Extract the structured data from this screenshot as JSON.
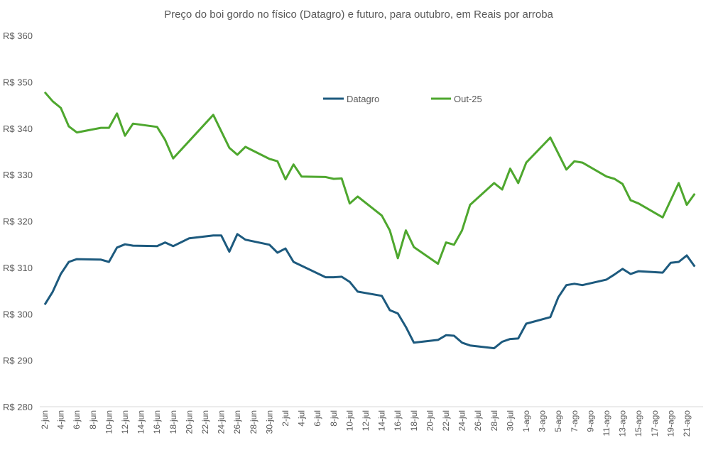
{
  "chart_data": {
    "type": "line",
    "title": "Preço do boi gordo no físico (Datagro) e futuro, para outubro, em Reais por arroba",
    "xlabel": "",
    "ylabel": "",
    "ylim": [
      280,
      360
    ],
    "y_ticks": [
      "R$ 280",
      "R$ 290",
      "R$ 300",
      "R$ 310",
      "R$ 320",
      "R$ 330",
      "R$ 340",
      "R$ 350",
      "R$ 360"
    ],
    "y_tick_values": [
      280,
      290,
      300,
      310,
      320,
      330,
      340,
      350,
      360
    ],
    "x_ticks": [
      "2-jun",
      "4-jun",
      "6-jun",
      "8-jun",
      "10-jun",
      "12-jun",
      "14-jun",
      "16-jun",
      "18-jun",
      "20-jun",
      "22-jun",
      "24-jun",
      "26-jun",
      "28-jun",
      "30-jun",
      "2-jul",
      "4-jul",
      "6-jul",
      "8-jul",
      "10-jul",
      "12-jul",
      "14-jul",
      "16-jul",
      "18-jul",
      "20-jul",
      "22-jul",
      "24-jul",
      "26-jul",
      "28-jul",
      "30-jul",
      "1-ago",
      "3-ago",
      "5-ago",
      "7-ago",
      "9-ago",
      "11-ago",
      "13-ago",
      "15-ago",
      "17-ago",
      "19-ago",
      "21-ago"
    ],
    "grid": false,
    "legend_position": "top-center",
    "series": [
      {
        "name": "Datagro",
        "color": "#1d5a7e",
        "points": [
          [
            "2-jun",
            302.0
          ],
          [
            "3-jun",
            304.8
          ],
          [
            "4-jun",
            308.6
          ],
          [
            "5-jun",
            311.2
          ],
          [
            "6-jun",
            311.8
          ],
          [
            "9-jun",
            311.7
          ],
          [
            "10-jun",
            311.2
          ],
          [
            "11-jun",
            314.3
          ],
          [
            "12-jun",
            315.0
          ],
          [
            "13-jun",
            314.7
          ],
          [
            "16-jun",
            314.6
          ],
          [
            "17-jun",
            315.4
          ],
          [
            "18-jun",
            314.6
          ],
          [
            "20-jun",
            316.3
          ],
          [
            "23-jun",
            316.9
          ],
          [
            "24-jun",
            316.9
          ],
          [
            "25-jun",
            313.4
          ],
          [
            "26-jun",
            317.2
          ],
          [
            "27-jun",
            316.0
          ],
          [
            "30-jun",
            314.9
          ],
          [
            "1-jul",
            313.2
          ],
          [
            "2-jul",
            314.1
          ],
          [
            "3-jul",
            311.2
          ],
          [
            "7-jul",
            307.9
          ],
          [
            "8-jul",
            307.9
          ],
          [
            "9-jul",
            308.0
          ],
          [
            "10-jul",
            306.9
          ],
          [
            "11-jul",
            304.8
          ],
          [
            "14-jul",
            303.9
          ],
          [
            "15-jul",
            300.8
          ],
          [
            "16-jul",
            300.1
          ],
          [
            "17-jul",
            297.2
          ],
          [
            "18-jul",
            293.8
          ],
          [
            "21-jul",
            294.4
          ],
          [
            "22-jul",
            295.4
          ],
          [
            "23-jul",
            295.3
          ],
          [
            "24-jul",
            293.8
          ],
          [
            "25-jul",
            293.2
          ],
          [
            "28-jul",
            292.6
          ],
          [
            "29-jul",
            294.0
          ],
          [
            "30-jul",
            294.6
          ],
          [
            "31-jul",
            294.7
          ],
          [
            "1-ago",
            297.9
          ],
          [
            "4-ago",
            299.3
          ],
          [
            "5-ago",
            303.6
          ],
          [
            "6-ago",
            306.2
          ],
          [
            "7-ago",
            306.5
          ],
          [
            "8-ago",
            306.2
          ],
          [
            "11-ago",
            307.4
          ],
          [
            "12-ago",
            308.5
          ],
          [
            "13-ago",
            309.7
          ],
          [
            "14-ago",
            308.6
          ],
          [
            "15-ago",
            309.2
          ],
          [
            "18-ago",
            308.9
          ],
          [
            "19-ago",
            311.0
          ],
          [
            "20-ago",
            311.2
          ],
          [
            "21-ago",
            312.6
          ],
          [
            "22-ago",
            310.2
          ]
        ]
      },
      {
        "name": "Out-25",
        "color": "#4ea72e",
        "points": [
          [
            "2-jun",
            347.8
          ],
          [
            "3-jun",
            345.8
          ],
          [
            "4-jun",
            344.4
          ],
          [
            "5-jun",
            340.4
          ],
          [
            "6-jun",
            339.1
          ],
          [
            "9-jun",
            340.1
          ],
          [
            "10-jun",
            340.1
          ],
          [
            "11-jun",
            343.2
          ],
          [
            "12-jun",
            338.4
          ],
          [
            "13-jun",
            341.0
          ],
          [
            "16-jun",
            340.3
          ],
          [
            "17-jun",
            337.5
          ],
          [
            "18-jun",
            333.5
          ],
          [
            "23-jun",
            342.9
          ],
          [
            "25-jun",
            335.8
          ],
          [
            "26-jun",
            334.3
          ],
          [
            "27-jun",
            336.0
          ],
          [
            "30-jun",
            333.4
          ],
          [
            "1-jul",
            332.9
          ],
          [
            "2-jul",
            329.0
          ],
          [
            "3-jul",
            332.2
          ],
          [
            "4-jul",
            329.6
          ],
          [
            "7-jul",
            329.5
          ],
          [
            "8-jul",
            329.1
          ],
          [
            "9-jul",
            329.2
          ],
          [
            "10-jul",
            323.8
          ],
          [
            "11-jul",
            325.3
          ],
          [
            "14-jul",
            321.2
          ],
          [
            "15-jul",
            318.0
          ],
          [
            "16-jul",
            312.0
          ],
          [
            "17-jul",
            318.0
          ],
          [
            "18-jul",
            314.4
          ],
          [
            "21-jul",
            310.8
          ],
          [
            "22-jul",
            315.4
          ],
          [
            "23-jul",
            314.9
          ],
          [
            "24-jul",
            318.0
          ],
          [
            "25-jul",
            323.5
          ],
          [
            "28-jul",
            328.2
          ],
          [
            "29-jul",
            326.8
          ],
          [
            "30-jul",
            331.3
          ],
          [
            "31-jul",
            328.2
          ],
          [
            "1-ago",
            332.6
          ],
          [
            "4-ago",
            338.0
          ],
          [
            "6-ago",
            331.1
          ],
          [
            "7-ago",
            332.9
          ],
          [
            "8-ago",
            332.6
          ],
          [
            "11-ago",
            329.6
          ],
          [
            "12-ago",
            329.1
          ],
          [
            "13-ago",
            328.0
          ],
          [
            "14-ago",
            324.5
          ],
          [
            "15-ago",
            323.8
          ],
          [
            "18-ago",
            320.8
          ],
          [
            "20-ago",
            328.2
          ],
          [
            "21-ago",
            323.5
          ],
          [
            "22-ago",
            325.9
          ]
        ]
      }
    ]
  }
}
